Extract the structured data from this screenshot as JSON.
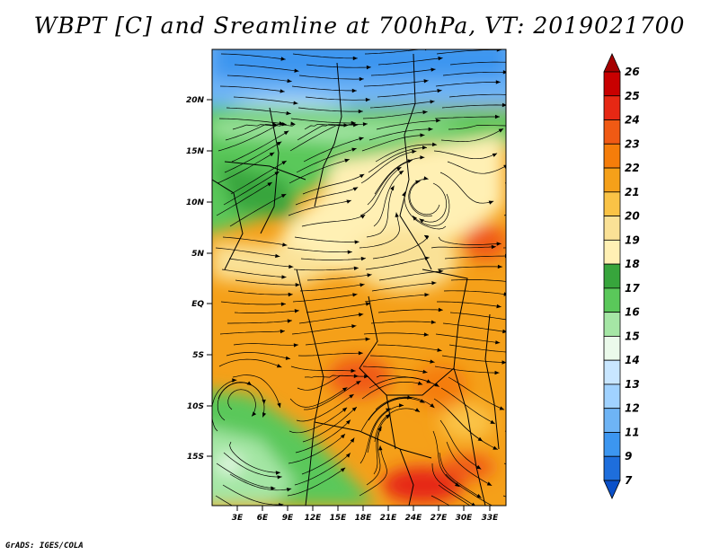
{
  "title": "WBPT [C] and Sreamline at 700hPa, VT: 2019021700",
  "credit": "GrADS: IGES/COLA",
  "map": {
    "lat_labels": [
      "20N",
      "15N",
      "10N",
      "5N",
      "EQ",
      "5S",
      "10S",
      "15S"
    ],
    "lon_labels": [
      "3E",
      "6E",
      "9E",
      "12E",
      "15E",
      "18E",
      "21E",
      "24E",
      "27E",
      "30E",
      "33E"
    ]
  },
  "colorbar": {
    "levels": [
      "26",
      "25",
      "24",
      "23",
      "22",
      "21",
      "20",
      "19",
      "18",
      "17",
      "16",
      "15",
      "14",
      "13",
      "12",
      "11",
      "9",
      "7"
    ],
    "colors": [
      "#a50000",
      "#c80000",
      "#e62814",
      "#f05a14",
      "#f57d0a",
      "#f5a019",
      "#fac346",
      "#fae196",
      "#fff0b4",
      "#37a53c",
      "#5ac85a",
      "#a5e6a5",
      "#ebfaeb",
      "#c8e6ff",
      "#a0d2ff",
      "#6eb4f5",
      "#3c96f0",
      "#1e6edc",
      "#0a50c8"
    ]
  }
}
